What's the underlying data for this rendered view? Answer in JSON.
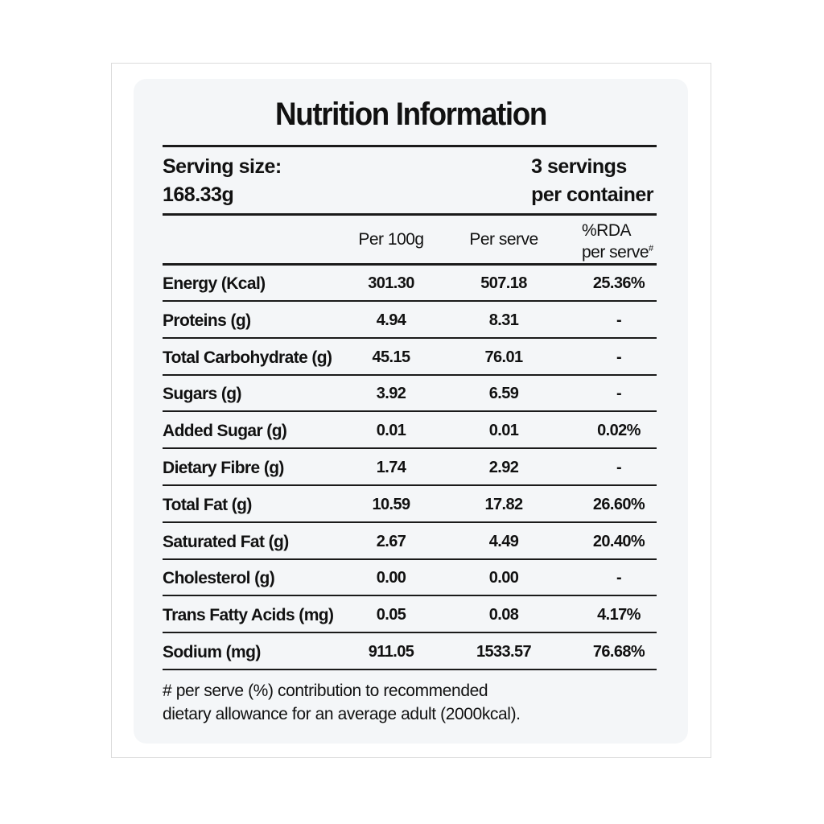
{
  "title": "Nutrition Information",
  "serving": {
    "size_label": "Serving size:",
    "size_value": "168.33g",
    "servings_line1": "3 servings",
    "servings_line2": "per container"
  },
  "columns": {
    "per100g": "Per 100g",
    "perserve": "Per serve",
    "rda_line1": "%RDA",
    "rda_line2": "per serve",
    "rda_mark": "#"
  },
  "rows": [
    {
      "label": "Energy (Kcal)",
      "per100g": "301.30",
      "perserve": "507.18",
      "rda": "25.36%"
    },
    {
      "label": "Proteins (g)",
      "per100g": "4.94",
      "perserve": "8.31",
      "rda": "-"
    },
    {
      "label": "Total Carbohydrate (g)",
      "per100g": "45.15",
      "perserve": "76.01",
      "rda": "-"
    },
    {
      "label": "Sugars (g)",
      "per100g": "3.92",
      "perserve": "6.59",
      "rda": "-"
    },
    {
      "label": "Added Sugar (g)",
      "per100g": "0.01",
      "perserve": "0.01",
      "rda": "0.02%"
    },
    {
      "label": "Dietary Fibre (g)",
      "per100g": "1.74",
      "perserve": "2.92",
      "rda": "-"
    },
    {
      "label": "Total Fat (g)",
      "per100g": "10.59",
      "perserve": "17.82",
      "rda": "26.60%"
    },
    {
      "label": "Saturated Fat (g)",
      "per100g": "2.67",
      "perserve": "4.49",
      "rda": "20.40%"
    },
    {
      "label": "Cholesterol (g)",
      "per100g": "0.00",
      "perserve": "0.00",
      "rda": "-"
    },
    {
      "label": "Trans Fatty Acids (mg)",
      "per100g": "0.05",
      "perserve": "0.08",
      "rda": "4.17%"
    },
    {
      "label": "Sodium (mg)",
      "per100g": "911.05",
      "perserve": "1533.57",
      "rda": "76.68%"
    }
  ],
  "footnote": {
    "line1": "# per serve (%) contribution to recommended",
    "line2": "dietary allowance for an average adult (2000kcal)."
  }
}
